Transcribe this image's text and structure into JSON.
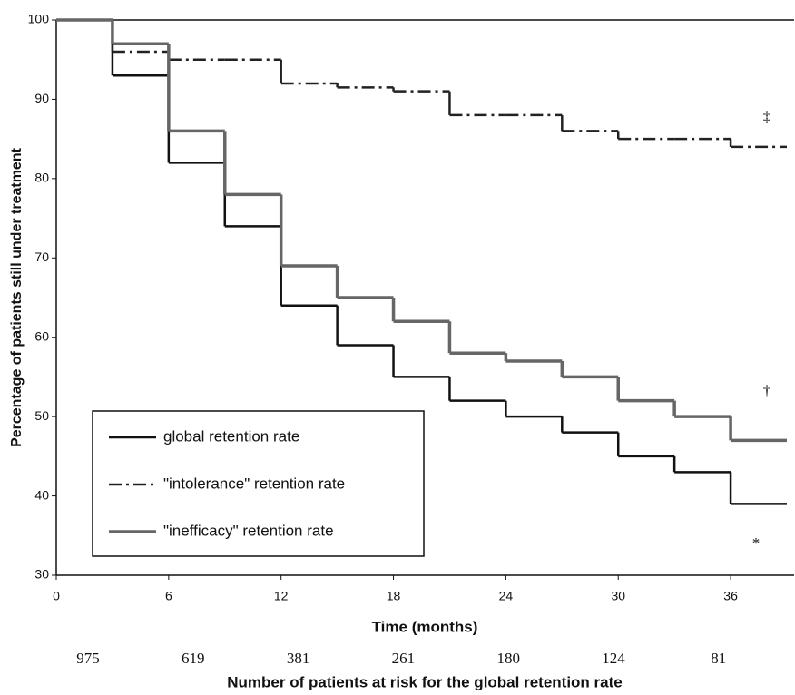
{
  "chart_data": {
    "type": "step",
    "xlabel": "Time (months)",
    "ylabel": "Percentage of patients still under treatment",
    "x": [
      0,
      3,
      6,
      9,
      12,
      15,
      18,
      21,
      24,
      27,
      30,
      33,
      36,
      39
    ],
    "xlim": [
      0,
      39
    ],
    "ylim": [
      30,
      100
    ],
    "xticks": [
      0,
      6,
      12,
      18,
      24,
      30,
      36
    ],
    "yticks": [
      30,
      40,
      50,
      60,
      70,
      80,
      90,
      100
    ],
    "series": [
      {
        "name": "global retention rate",
        "color": "#111111",
        "style": "solid",
        "values": [
          100,
          93,
          82,
          74,
          64,
          59,
          55,
          52,
          50,
          48,
          45,
          43,
          39,
          39
        ]
      },
      {
        "name": "\"intolerance\" retention rate",
        "color": "#222222",
        "style": "dashdot",
        "values": [
          100,
          96,
          95,
          95,
          92,
          91.5,
          91,
          88,
          88,
          86,
          85,
          85,
          84,
          84
        ]
      },
      {
        "name": "\"inefficacy\" retention rate",
        "color": "#666666",
        "style": "thick",
        "values": [
          100,
          97,
          86,
          78,
          69,
          65,
          62,
          58,
          57,
          55,
          52,
          50,
          47,
          47
        ]
      }
    ],
    "annotations": [
      "‡",
      "†",
      "*"
    ],
    "at_risk": {
      "label": "Number of patients at risk for the global retention rate",
      "values": [
        975,
        619,
        381,
        261,
        180,
        124,
        81
      ]
    }
  }
}
